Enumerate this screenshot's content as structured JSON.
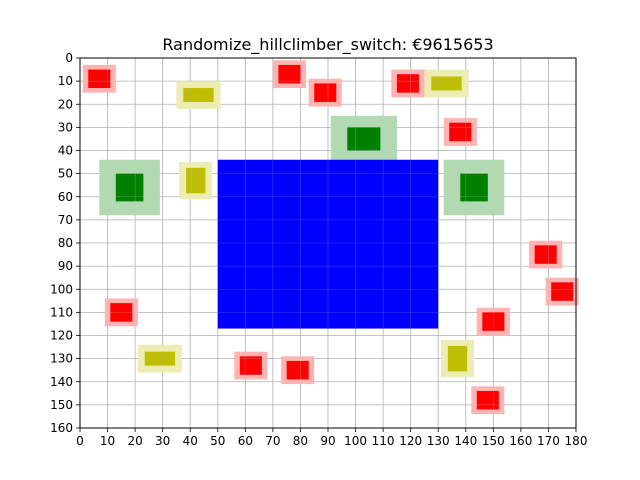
{
  "title": "Randomize_hillclimber_switch: €9615653",
  "colors": {
    "background": "#ffffff",
    "grid": "#b0b0b0",
    "big_block": "#0000ff",
    "red": "#ff0000",
    "red_halo": "#ffb3b3",
    "green": "#008000",
    "green_halo": "#b3d9b3",
    "yellow": "#bfbf00",
    "yellow_halo": "#ececb3"
  },
  "chart_data": {
    "type": "scatter",
    "xlim": [
      0,
      180
    ],
    "ylim": [
      0,
      160
    ],
    "y_inverted": true,
    "grid": true,
    "x_ticks": [
      0,
      10,
      20,
      30,
      40,
      50,
      60,
      70,
      80,
      90,
      100,
      110,
      120,
      130,
      140,
      150,
      160,
      170,
      180
    ],
    "y_ticks": [
      0,
      10,
      20,
      30,
      40,
      50,
      60,
      70,
      80,
      90,
      100,
      110,
      120,
      130,
      140,
      150,
      160
    ],
    "big_block": {
      "x0": 50,
      "x1": 130,
      "y0": 44,
      "y1": 117
    },
    "items": [
      {
        "kind": "red",
        "x": 7,
        "y": 9,
        "size": 8,
        "halo": 12
      },
      {
        "kind": "red",
        "x": 76,
        "y": 7,
        "size": 8,
        "halo": 12
      },
      {
        "kind": "red",
        "x": 89,
        "y": 15,
        "size": 8,
        "halo": 12
      },
      {
        "kind": "red",
        "x": 119,
        "y": 11,
        "size": 8,
        "halo": 12
      },
      {
        "kind": "red",
        "x": 138,
        "y": 32,
        "size": 8,
        "halo": 12
      },
      {
        "kind": "red",
        "x": 169,
        "y": 85,
        "size": 8,
        "halo": 12
      },
      {
        "kind": "red",
        "x": 175,
        "y": 101,
        "size": 8,
        "halo": 12
      },
      {
        "kind": "red",
        "x": 15,
        "y": 110,
        "size": 8,
        "halo": 12
      },
      {
        "kind": "red",
        "x": 150,
        "y": 114,
        "size": 8,
        "halo": 12
      },
      {
        "kind": "red",
        "x": 62,
        "y": 133,
        "size": 8,
        "halo": 12
      },
      {
        "kind": "red",
        "x": 79,
        "y": 135,
        "size": 8,
        "halo": 12
      },
      {
        "kind": "red",
        "x": 148,
        "y": 148,
        "size": 8,
        "halo": 12
      },
      {
        "kind": "yellow",
        "x": 43,
        "y": 16,
        "size_x": 11,
        "size_y": 6,
        "halo_x": 16,
        "halo_y": 12
      },
      {
        "kind": "yellow",
        "x": 133,
        "y": 11,
        "size_x": 11,
        "size_y": 6,
        "halo_x": 16,
        "halo_y": 12
      },
      {
        "kind": "yellow",
        "x": 42,
        "y": 53,
        "size_x": 7,
        "size_y": 11,
        "halo_x": 12,
        "halo_y": 16
      },
      {
        "kind": "yellow",
        "x": 29,
        "y": 130,
        "size_x": 11,
        "size_y": 6,
        "halo_x": 16,
        "halo_y": 12
      },
      {
        "kind": "yellow",
        "x": 137,
        "y": 130,
        "size_x": 7,
        "size_y": 11,
        "halo_x": 12,
        "halo_y": 16
      },
      {
        "kind": "green",
        "x": 18,
        "y": 56,
        "size_x": 10,
        "size_y": 12,
        "halo_x": 22,
        "halo_y": 24
      },
      {
        "kind": "green",
        "x": 103,
        "y": 35,
        "size_x": 12,
        "size_y": 10,
        "halo_x": 24,
        "halo_y": 20
      },
      {
        "kind": "green",
        "x": 143,
        "y": 56,
        "size_x": 10,
        "size_y": 12,
        "halo_x": 22,
        "halo_y": 24
      }
    ]
  }
}
